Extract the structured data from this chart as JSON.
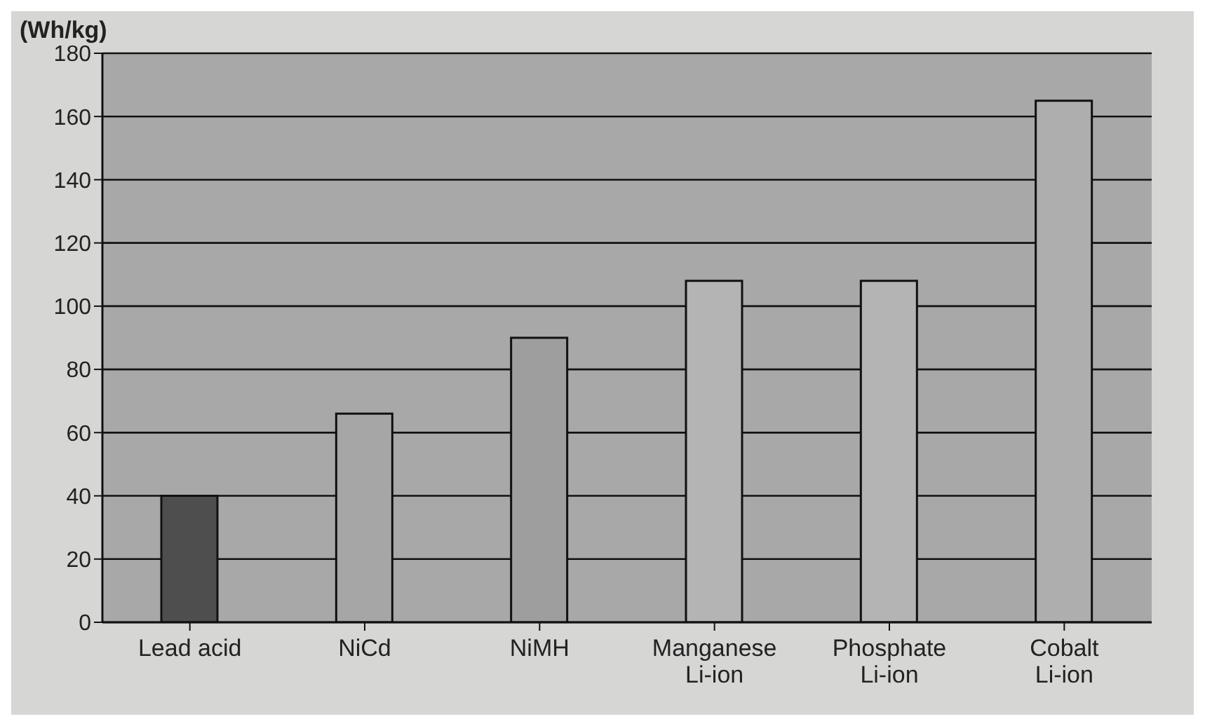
{
  "chart_data": {
    "type": "bar",
    "ylabel": "(Wh/kg)",
    "categories": [
      "Lead acid",
      "NiCd",
      "NiMH",
      "Manganese\nLi-ion",
      "Phosphate\nLi-ion",
      "Cobalt\nLi-ion"
    ],
    "values": [
      40,
      66,
      90,
      108,
      108,
      165
    ],
    "colors": [
      "#4e4e4e",
      "#a6a6a6",
      "#9e9e9e",
      "#b4b4b4",
      "#b4b4b4",
      "#aeaeae"
    ],
    "ylim": [
      0,
      180
    ],
    "yticks": [
      0,
      20,
      40,
      60,
      80,
      100,
      120,
      140,
      160,
      180
    ],
    "grid": "y"
  }
}
